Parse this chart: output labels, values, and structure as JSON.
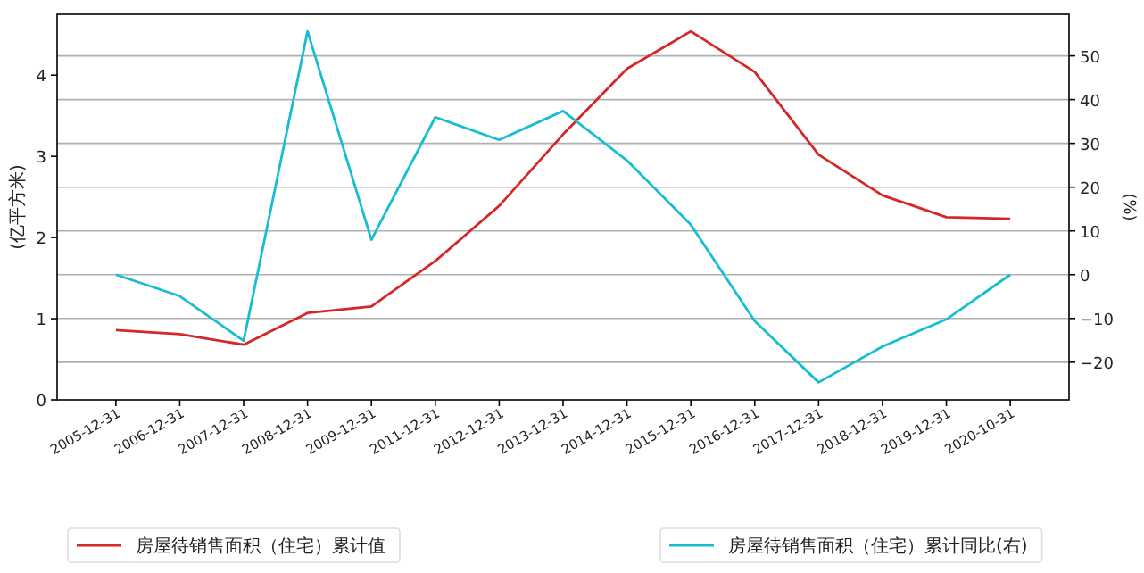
{
  "chart_data": {
    "type": "line",
    "ylabel": "(亿平方米)",
    "y2label": "(%)",
    "categories": [
      "2005-12-31",
      "2006-12-31",
      "2007-12-31",
      "2008-12-31",
      "2009-12-31",
      "2011-12-31",
      "2012-12-31",
      "2013-12-31",
      "2014-12-31",
      "2015-12-31",
      "2016-12-31",
      "2017-12-31",
      "2018-12-31",
      "2019-12-31",
      "2020-10-31"
    ],
    "series": [
      {
        "name": "房屋待销售面积（住宅）累计值",
        "color": "#d62728",
        "values": [
          0.86,
          0.81,
          0.68,
          1.07,
          1.15,
          1.71,
          2.39,
          3.27,
          4.08,
          4.54,
          4.04,
          3.02,
          2.52,
          2.25,
          2.23
        ]
      },
      {
        "name": "房屋待销售面积（住宅）累计同比(右)",
        "color": "#17becf",
        "axis": "y2",
        "values": [
          0,
          -4.9,
          -15.1,
          55.6,
          8.0,
          36.0,
          30.8,
          37.4,
          26.1,
          11.4,
          -10.6,
          -24.6,
          -16.4,
          -10.2,
          0
        ]
      }
    ],
    "ylim": [
      0,
      4.75
    ],
    "yticks": [
      0,
      1,
      2,
      3,
      4
    ],
    "y2lim": [
      -28.6,
      59.5
    ],
    "y2ticks": [
      -20,
      -10,
      0,
      10,
      20,
      30,
      40,
      50
    ],
    "grid": "y",
    "legend": "bottom"
  }
}
